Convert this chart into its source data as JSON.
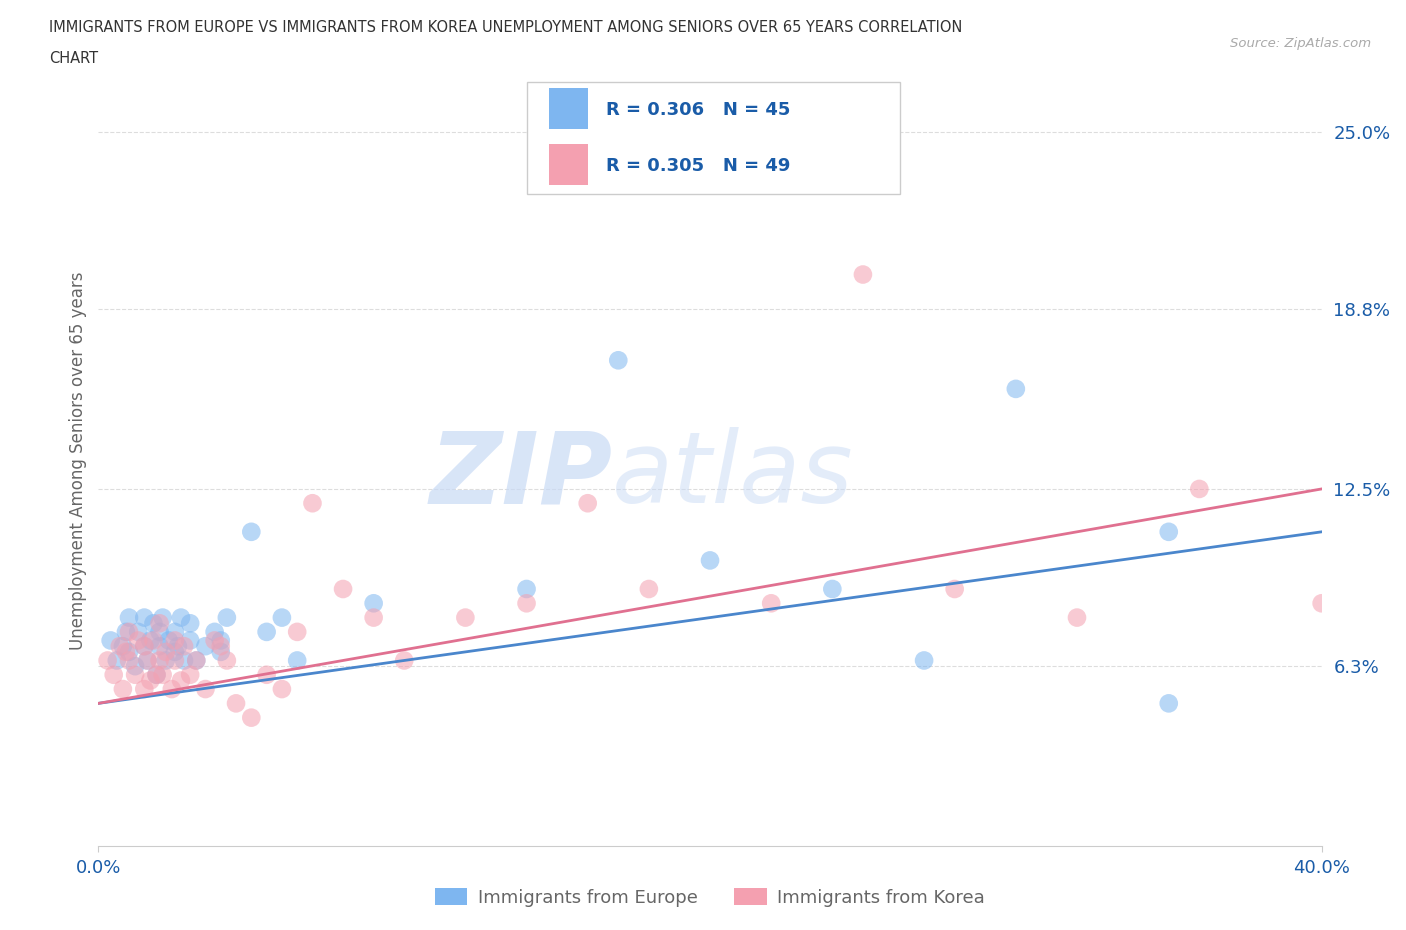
{
  "title_line1": "IMMIGRANTS FROM EUROPE VS IMMIGRANTS FROM KOREA UNEMPLOYMENT AMONG SENIORS OVER 65 YEARS CORRELATION",
  "title_line2": "CHART",
  "source": "Source: ZipAtlas.com",
  "ylabel": "Unemployment Among Seniors over 65 years",
  "xlim": [
    0.0,
    0.4
  ],
  "ylim": [
    0.0,
    0.27
  ],
  "xtick_positions": [
    0.0,
    0.4
  ],
  "xtick_labels": [
    "0.0%",
    "40.0%"
  ],
  "ytick_positions": [
    0.063,
    0.125,
    0.188,
    0.25
  ],
  "ytick_labels": [
    "6.3%",
    "12.5%",
    "18.8%",
    "25.0%"
  ],
  "europe_color": "#7eb6f0",
  "korea_color": "#f4a0b0",
  "europe_R": 0.306,
  "europe_N": 45,
  "korea_R": 0.305,
  "korea_N": 49,
  "label_color": "#1a5ca8",
  "europe_line_color": "#4a86cc",
  "korea_line_color": "#e07090",
  "legend_label_color": "#666666",
  "background_color": "#ffffff",
  "grid_color": "#dddddd",
  "europe_x": [
    0.004,
    0.006,
    0.008,
    0.009,
    0.01,
    0.01,
    0.012,
    0.013,
    0.015,
    0.015,
    0.016,
    0.017,
    0.018,
    0.019,
    0.02,
    0.02,
    0.021,
    0.022,
    0.023,
    0.025,
    0.025,
    0.026,
    0.027,
    0.028,
    0.03,
    0.03,
    0.032,
    0.035,
    0.038,
    0.04,
    0.04,
    0.042,
    0.05,
    0.055,
    0.06,
    0.065,
    0.09,
    0.14,
    0.17,
    0.2,
    0.24,
    0.27,
    0.3,
    0.35,
    0.35
  ],
  "europe_y": [
    0.072,
    0.065,
    0.07,
    0.075,
    0.068,
    0.08,
    0.063,
    0.075,
    0.07,
    0.08,
    0.065,
    0.072,
    0.078,
    0.06,
    0.07,
    0.075,
    0.08,
    0.065,
    0.072,
    0.068,
    0.075,
    0.07,
    0.08,
    0.065,
    0.072,
    0.078,
    0.065,
    0.07,
    0.075,
    0.068,
    0.072,
    0.08,
    0.11,
    0.075,
    0.08,
    0.065,
    0.085,
    0.09,
    0.17,
    0.1,
    0.09,
    0.065,
    0.16,
    0.11,
    0.05
  ],
  "korea_x": [
    0.003,
    0.005,
    0.007,
    0.008,
    0.009,
    0.01,
    0.01,
    0.012,
    0.013,
    0.015,
    0.015,
    0.016,
    0.017,
    0.018,
    0.019,
    0.02,
    0.02,
    0.021,
    0.022,
    0.024,
    0.025,
    0.025,
    0.027,
    0.028,
    0.03,
    0.032,
    0.035,
    0.038,
    0.04,
    0.042,
    0.045,
    0.05,
    0.055,
    0.06,
    0.065,
    0.07,
    0.08,
    0.09,
    0.1,
    0.12,
    0.14,
    0.16,
    0.18,
    0.22,
    0.25,
    0.28,
    0.32,
    0.36,
    0.4
  ],
  "korea_y": [
    0.065,
    0.06,
    0.07,
    0.055,
    0.068,
    0.065,
    0.075,
    0.06,
    0.072,
    0.055,
    0.07,
    0.065,
    0.058,
    0.072,
    0.06,
    0.065,
    0.078,
    0.06,
    0.068,
    0.055,
    0.072,
    0.065,
    0.058,
    0.07,
    0.06,
    0.065,
    0.055,
    0.072,
    0.07,
    0.065,
    0.05,
    0.045,
    0.06,
    0.055,
    0.075,
    0.12,
    0.09,
    0.08,
    0.065,
    0.08,
    0.085,
    0.12,
    0.09,
    0.085,
    0.2,
    0.09,
    0.08,
    0.125,
    0.085
  ]
}
